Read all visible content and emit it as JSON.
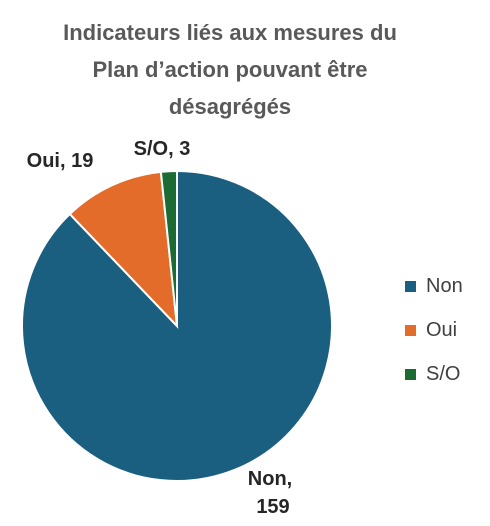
{
  "chart_data": {
    "type": "pie",
    "title_lines": [
      "Indicateurs liés aux mesures du",
      "Plan d’action pouvant être",
      "désagrégés"
    ],
    "categories": [
      "Non",
      "Oui",
      "S/O"
    ],
    "values": [
      159,
      19,
      3
    ],
    "colors": [
      "#1a5e80",
      "#e46c2a",
      "#1b6b33"
    ],
    "data_labels": [
      {
        "line1": "Non,",
        "line2": "159"
      },
      {
        "line1": "Oui, 19",
        "line2": ""
      },
      {
        "line1": "S/O, 3",
        "line2": ""
      }
    ],
    "legend": {
      "position": "right",
      "entries": [
        "Non",
        "Oui",
        "S/O"
      ]
    }
  }
}
